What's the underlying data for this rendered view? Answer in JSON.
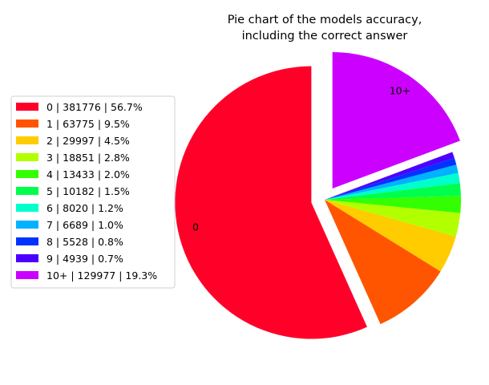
{
  "chart_data": {
    "type": "pie",
    "title": [
      "Pie chart of the models accuracy,",
      "including the correct answer"
    ],
    "categories": [
      "0",
      "1",
      "2",
      "3",
      "4",
      "5",
      "6",
      "7",
      "8",
      "9",
      "10+"
    ],
    "values": [
      381776,
      63775,
      29997,
      18851,
      13433,
      10182,
      8020,
      6689,
      5528,
      4939,
      129977
    ],
    "percents": [
      "56.7%",
      "9.5%",
      "4.5%",
      "2.8%",
      "2.0%",
      "1.5%",
      "1.2%",
      "1.0%",
      "0.8%",
      "0.7%",
      "19.3%"
    ],
    "legend_labels": [
      "0 | 381776 | 56.7%",
      "1 | 63775 | 9.5%",
      "2 | 29997 | 4.5%",
      "3 | 18851 | 2.8%",
      "4 | 13433 | 2.0%",
      "5 | 10182 | 1.5%",
      "6 | 8020 | 1.2%",
      "7 | 6689 | 1.0%",
      "8 | 5528 | 0.8%",
      "9 | 4939 | 0.7%",
      "10+ | 129977 | 19.3%"
    ],
    "slice_labels": [
      "0",
      "",
      "",
      "",
      "",
      "",
      "",
      "",
      "",
      "",
      "10+"
    ],
    "exploded": [
      "0",
      "10+"
    ],
    "colors": [
      "#ff0029",
      "#ff5500",
      "#ffcc00",
      "#b2ff00",
      "#33ff00",
      "#00ff4c",
      "#00ffcc",
      "#00b2ff",
      "#0033ff",
      "#4c00ff",
      "#cc00ff"
    ],
    "legend_placement": "left"
  }
}
